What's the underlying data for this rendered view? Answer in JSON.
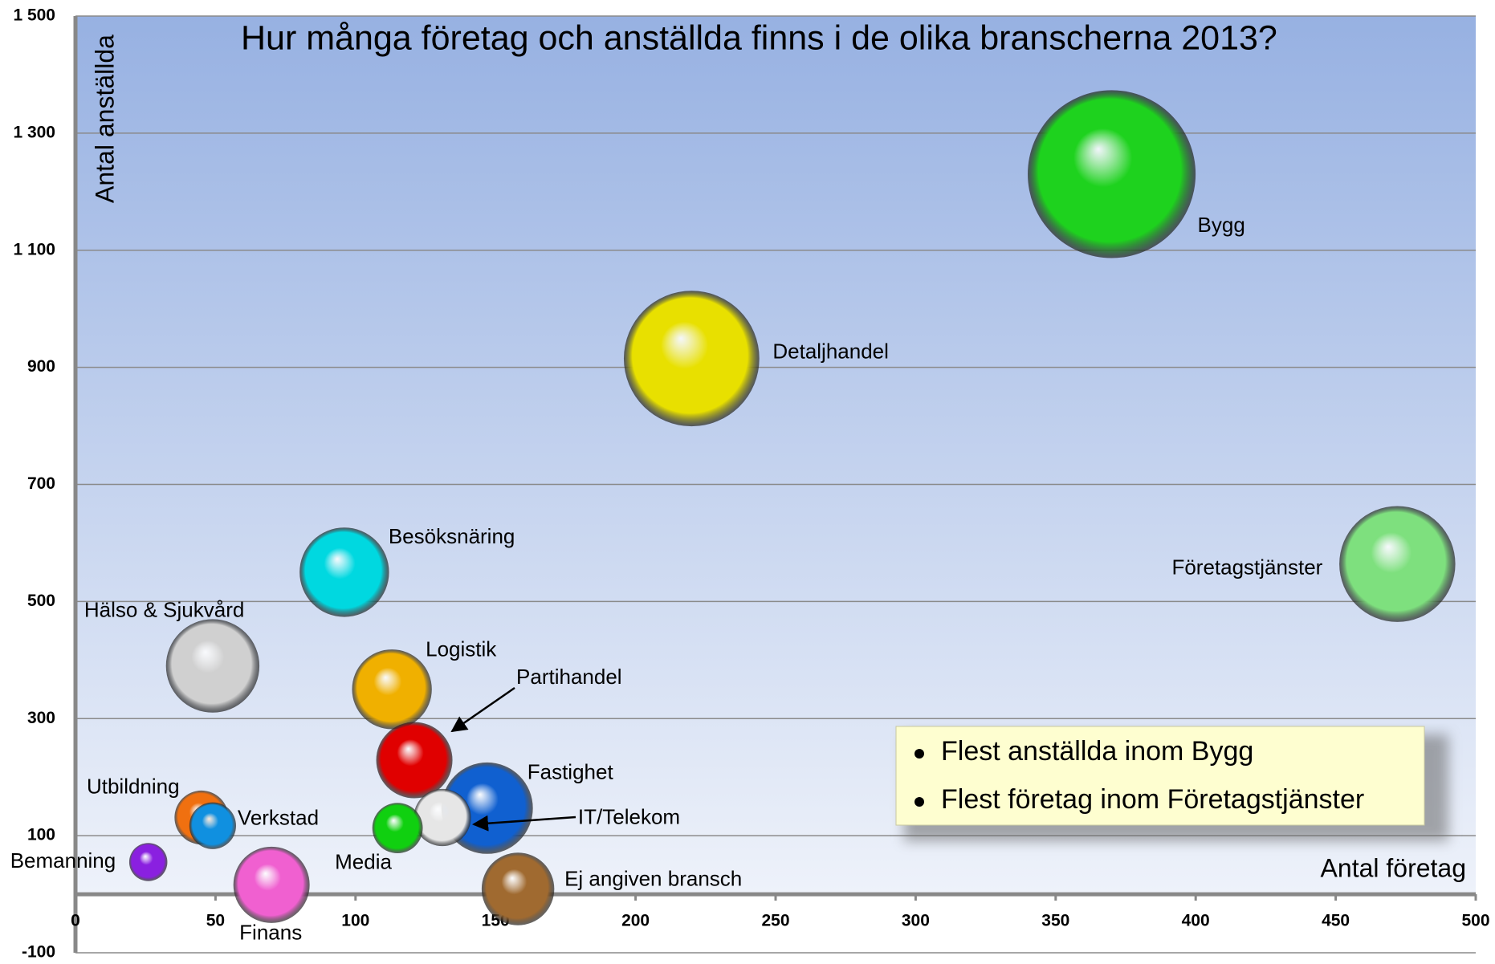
{
  "chart_data": {
    "type": "bubble",
    "title": "Hur många företag och anställda finns i de olika  branscherna 2013?",
    "xlabel": "Antal företag",
    "ylabel": "Antal anställda",
    "annotations": [
      "Flest anställda inom Bygg",
      "Flest företag inom Företagstjänster"
    ],
    "xlim": [
      0,
      500
    ],
    "xticks": [
      0,
      50,
      100,
      150,
      200,
      250,
      300,
      350,
      400,
      450,
      500
    ],
    "ylim": [
      -100,
      1500
    ],
    "yticks": [
      -100,
      100,
      300,
      500,
      700,
      900,
      {
        "value": 1100,
        "label": "1 100"
      },
      {
        "value": 1300,
        "label": "1 300"
      },
      {
        "value": 1500,
        "label": "1 500"
      }
    ],
    "grid": true,
    "series": [
      {
        "name": "Bygg",
        "color": "#1ed21e",
        "x": 370,
        "y": 1230,
        "size": 775
      },
      {
        "name": "Detaljhandel",
        "color": "#e8e000",
        "x": 220,
        "y": 915,
        "size": 505
      },
      {
        "name": "Företagstjänster",
        "color": "#7ee07e",
        "x": 472,
        "y": 564,
        "size": 370
      },
      {
        "name": "Besöksnäring",
        "color": "#00d8e0",
        "x": 96,
        "y": 550,
        "size": 220
      },
      {
        "name": "Hälso & Sjukvård",
        "color": "#d0d0d0",
        "x": 49,
        "y": 390,
        "size": 240
      },
      {
        "name": "Logistik",
        "color": "#f0b000",
        "x": 113,
        "y": 350,
        "size": 175
      },
      {
        "name": "Partihandel",
        "color": "#e00000",
        "x": 121,
        "y": 229,
        "size": 160
      },
      {
        "name": "Fastighet",
        "color": "#1060d0",
        "x": 147,
        "y": 147,
        "size": 230
      },
      {
        "name": "IT/Telekom",
        "color": "#e6e6e6",
        "x": 131,
        "y": 131,
        "size": 90
      },
      {
        "name": "Media",
        "color": "#10d010",
        "x": 115,
        "y": 113,
        "size": 70
      },
      {
        "name": "Utbildning",
        "color": "#f07010",
        "x": 45,
        "y": 131,
        "size": 80
      },
      {
        "name": "Verkstad",
        "color": "#1090e0",
        "x": 49,
        "y": 117,
        "size": 60
      },
      {
        "name": "Bemanning",
        "color": "#8a20e0",
        "x": 26,
        "y": 55,
        "size": 40
      },
      {
        "name": "Finans",
        "color": "#f060d0",
        "x": 70,
        "y": 16,
        "size": 160
      },
      {
        "name": "Ej angiven bransch",
        "color": "#a06a30",
        "x": 158,
        "y": 9,
        "size": 145
      }
    ]
  }
}
